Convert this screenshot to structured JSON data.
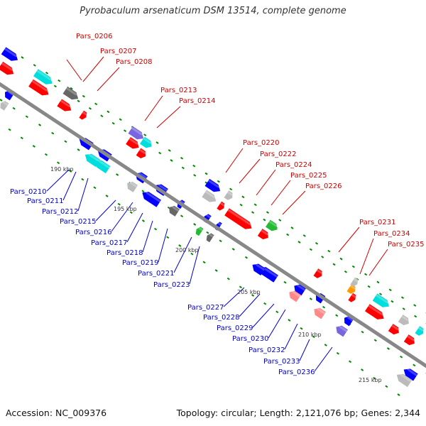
{
  "title": "Pyrobaculum arsenaticum DSM 13514, complete genome",
  "footer": {
    "accession": "Accession: NC_009376",
    "topology": "Topology: circular; Length: 2,121,076 bp; Genes: 2,344"
  },
  "colors": {
    "backbone": "#888888",
    "top_label": "#cc0000",
    "bottom_label": "#0000cc",
    "forward_gene": "#ff0000",
    "reverse_gene": "#0000ff",
    "cyan_gene": "#00dddd",
    "gray_gene": "#bbbbbb",
    "green_dash": "#008800"
  },
  "ticks": [
    "190 kbp",
    "195 kbp",
    "200 kbp",
    "205 kbp",
    "210 kbp",
    "215 kbp"
  ],
  "top_labels": [
    "Pars_0206",
    "Pars_0207",
    "Pars_0208",
    "Pars_0213",
    "Pars_0214",
    "Pars_0220",
    "Pars_0222",
    "Pars_0224",
    "Pars_0225",
    "Pars_0226",
    "Pars_0231",
    "Pars_0234",
    "Pars_0235"
  ],
  "bottom_labels": [
    "Pars_0210",
    "Pars_0211",
    "Pars_0212",
    "Pars_0215",
    "Pars_0216",
    "Pars_0217",
    "Pars_0218",
    "Pars_0219",
    "Pars_0221",
    "Pars_0223",
    "Pars_0227",
    "Pars_0228",
    "Pars_0229",
    "Pars_0230",
    "Pars_0232",
    "Pars_0233",
    "Pars_0236"
  ]
}
